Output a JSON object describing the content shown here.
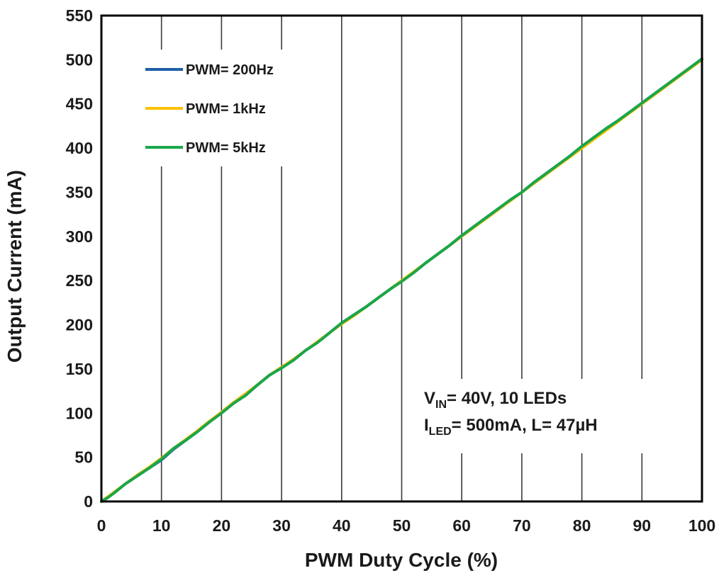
{
  "chart_data": {
    "type": "line",
    "title": "",
    "xlabel": "PWM Duty Cycle (%)",
    "ylabel": "Output Current (mA)",
    "xlim": [
      0,
      100
    ],
    "ylim": [
      0,
      550
    ],
    "x_ticks": [
      0,
      10,
      20,
      30,
      40,
      50,
      60,
      70,
      80,
      90,
      100
    ],
    "y_ticks": [
      0,
      50,
      100,
      150,
      200,
      250,
      300,
      350,
      400,
      450,
      500,
      550
    ],
    "x_tick_labels": [
      "0",
      "10",
      "20",
      "30",
      "40",
      "50",
      "60",
      "70",
      "80",
      "90",
      "100"
    ],
    "y_tick_labels": [
      "0",
      "50",
      "100",
      "150",
      "200",
      "250",
      "300",
      "350",
      "400",
      "450",
      "500",
      "550"
    ],
    "grid": "vertical",
    "legend_position": "top-left",
    "series": [
      {
        "name": "PWM= 200Hz",
        "color": "#1f5fa8",
        "x": [
          0,
          1,
          2,
          4,
          6,
          8,
          10,
          12,
          14,
          16,
          18,
          20,
          22,
          24,
          26,
          28,
          30,
          32,
          34,
          36,
          38,
          40,
          42,
          44,
          46,
          48,
          50,
          52,
          54,
          56,
          58,
          60,
          62,
          64,
          66,
          68,
          70,
          72,
          74,
          76,
          78,
          80,
          82,
          84,
          86,
          88,
          90,
          92,
          94,
          96,
          98,
          100
        ],
        "y": [
          0,
          5,
          9,
          20,
          29,
          38,
          47,
          59,
          69,
          79,
          90,
          101,
          112,
          120,
          132,
          143,
          152,
          160,
          171,
          180,
          191,
          202,
          211,
          220,
          230,
          240,
          250,
          259,
          270,
          280,
          290,
          301,
          311,
          321,
          331,
          341,
          350,
          361,
          371,
          381,
          391,
          402,
          412,
          422,
          431,
          441,
          451,
          461,
          471,
          481,
          491,
          501
        ]
      },
      {
        "name": "PWM= 1kHz",
        "color": "#ffc000",
        "x": [
          0,
          1,
          2,
          4,
          6,
          8,
          10,
          12,
          14,
          16,
          18,
          20,
          22,
          24,
          26,
          28,
          30,
          32,
          34,
          36,
          38,
          40,
          42,
          44,
          46,
          48,
          50,
          52,
          54,
          56,
          58,
          60,
          62,
          64,
          66,
          68,
          70,
          72,
          74,
          76,
          78,
          80,
          82,
          84,
          86,
          88,
          90,
          92,
          94,
          96,
          98,
          100
        ],
        "y": [
          0,
          5,
          10,
          20,
          30,
          39,
          49,
          60,
          70,
          80,
          91,
          101,
          112,
          122,
          132,
          143,
          152,
          161,
          171,
          181,
          191,
          201,
          210,
          220,
          230,
          240,
          250,
          260,
          270,
          280,
          290,
          300,
          310,
          320,
          330,
          340,
          350,
          360,
          370,
          380,
          390,
          400,
          410,
          420,
          430,
          440,
          450,
          460,
          470,
          480,
          490,
          500
        ]
      },
      {
        "name": "PWM= 5kHz",
        "color": "#1aa64a",
        "x": [
          0,
          1,
          2,
          4,
          6,
          8,
          10,
          12,
          14,
          16,
          18,
          20,
          22,
          24,
          26,
          28,
          30,
          32,
          34,
          36,
          38,
          40,
          42,
          44,
          46,
          48,
          50,
          52,
          54,
          56,
          58,
          60,
          62,
          64,
          66,
          68,
          70,
          72,
          74,
          76,
          78,
          80,
          82,
          84,
          86,
          88,
          90,
          92,
          94,
          96,
          98,
          100
        ],
        "y": [
          0,
          4,
          9,
          20,
          29,
          38,
          48,
          60,
          69,
          79,
          90,
          100,
          111,
          120,
          132,
          143,
          151,
          160,
          171,
          180,
          191,
          202,
          211,
          220,
          230,
          240,
          249,
          259,
          270,
          280,
          290,
          301,
          311,
          321,
          331,
          341,
          350,
          361,
          371,
          381,
          391,
          402,
          412,
          422,
          431,
          441,
          451,
          461,
          471,
          481,
          491,
          501
        ]
      }
    ],
    "annotation": {
      "line1_main": "V",
      "line1_sub": "IN",
      "line1_rest": "= 40V, 10 LEDs",
      "line2_main": "I",
      "line2_sub": "LED",
      "line2_rest": "= 500mA, L= 47µH"
    }
  }
}
